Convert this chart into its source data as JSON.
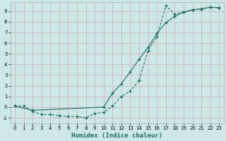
{
  "xlabel": "Humidex (Indice chaleur)",
  "ylabel": "",
  "bg_color": "#cce8e8",
  "grid_color": "#d4b8b8",
  "line_color": "#1a6e60",
  "xlim": [
    -0.5,
    23.5
  ],
  "ylim": [
    -1.5,
    9.8
  ],
  "yticks": [
    -1,
    0,
    1,
    2,
    3,
    4,
    5,
    6,
    7,
    8,
    9
  ],
  "xticks": [
    0,
    1,
    2,
    3,
    4,
    5,
    6,
    7,
    8,
    9,
    10,
    11,
    12,
    13,
    14,
    15,
    16,
    17,
    18,
    19,
    20,
    21,
    22,
    23
  ],
  "line1_x": [
    0,
    1,
    2,
    3,
    4,
    5,
    6,
    7,
    8,
    9,
    10,
    11,
    12,
    13,
    14,
    15,
    16,
    17,
    18,
    19,
    20,
    21,
    22,
    23
  ],
  "line1_y": [
    0.1,
    0.1,
    -0.4,
    -0.7,
    -0.7,
    -0.8,
    -0.85,
    -0.9,
    -1.0,
    -0.6,
    -0.5,
    0.1,
    1.0,
    1.5,
    2.5,
    5.3,
    6.6,
    9.5,
    8.7,
    8.9,
    9.1,
    9.2,
    9.35,
    9.3
  ],
  "line2_x": [
    0,
    2,
    10,
    11,
    12,
    13,
    14,
    15,
    16,
    17,
    18,
    19,
    20,
    21,
    22,
    23
  ],
  "line2_y": [
    0.1,
    -0.3,
    0.0,
    1.3,
    2.2,
    3.3,
    4.5,
    5.6,
    6.9,
    7.9,
    8.5,
    8.9,
    9.1,
    9.2,
    9.35,
    9.3
  ]
}
